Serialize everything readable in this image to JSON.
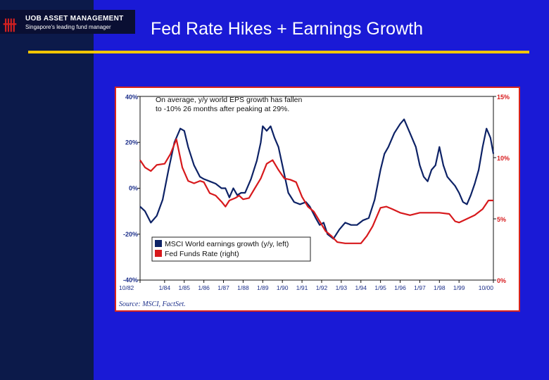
{
  "header": {
    "logo_mark": "卌",
    "logo_name": "UOB ASSET MANAGEMENT",
    "logo_tagline": "Singapore's leading fund manager",
    "title": "Fed Rate Hikes + Earnings Growth"
  },
  "colors": {
    "eps": "#0d2266",
    "fed": "#d7191c",
    "left_tick": "#1c2f8a",
    "right_tick": "#d7191c",
    "frame": "#d8241c",
    "accent_rule": "#f2c500"
  },
  "chart_data": {
    "type": "line",
    "annotation": "On average, y/y world EPS growth has fallen to -10% 26 months after peaking at 29%.",
    "annotation_lines": [
      "On average, y/y world EPS growth has fallen",
      "to -10% 26 months after peaking at 29%."
    ],
    "source": "Source: MSCI, FactSet.",
    "x_tick_labels": [
      "10/82",
      "1/84",
      "1/85",
      "1/86",
      "1/87",
      "1/88",
      "1/89",
      "1/90",
      "1/91",
      "1/92",
      "1/93",
      "1/94",
      "1/95",
      "1/96",
      "1/97",
      "1/98",
      "1/99",
      "10/00"
    ],
    "x_tick_values": [
      1982.75,
      1984.0,
      1985.0,
      1986.0,
      1987.0,
      1988.0,
      1989.0,
      1990.0,
      1991.0,
      1992.0,
      1993.0,
      1994.0,
      1995.0,
      1996.0,
      1997.0,
      1998.0,
      1999.0,
      2000.75
    ],
    "xlim": [
      1982.75,
      2000.75
    ],
    "y_left": {
      "ticks": [
        "40%",
        "20%",
        "0%",
        "-20%",
        "-40%"
      ],
      "tick_values": [
        40,
        20,
        0,
        -20,
        -40
      ],
      "range": [
        -40,
        40
      ]
    },
    "y_right": {
      "ticks": [
        "15%",
        "10%",
        "5%",
        "0%"
      ],
      "tick_values": [
        15,
        10,
        5,
        0
      ],
      "range": [
        0,
        15
      ]
    },
    "series": [
      {
        "name": "MSCI World earnings growth (y/y, left)",
        "axis": "left",
        "x": [
          1982.75,
          1983.0,
          1983.3,
          1983.6,
          1983.9,
          1984.2,
          1984.5,
          1984.8,
          1985.0,
          1985.2,
          1985.5,
          1985.8,
          1986.0,
          1986.3,
          1986.6,
          1986.9,
          1987.1,
          1987.3,
          1987.5,
          1987.7,
          1987.9,
          1988.1,
          1988.4,
          1988.7,
          1988.9,
          1989.0,
          1989.2,
          1989.4,
          1989.6,
          1989.8,
          1990.0,
          1990.3,
          1990.6,
          1990.9,
          1991.2,
          1991.4,
          1991.7,
          1991.9,
          1992.1,
          1992.3,
          1992.6,
          1992.9,
          1993.2,
          1993.5,
          1993.8,
          1994.1,
          1994.4,
          1994.7,
          1995.0,
          1995.2,
          1995.4,
          1995.7,
          1996.0,
          1996.2,
          1996.5,
          1996.8,
          1997.0,
          1997.2,
          1997.4,
          1997.6,
          1997.8,
          1998.0,
          1998.2,
          1998.4,
          1998.6,
          1998.8,
          1999.0,
          1999.2,
          1999.4,
          1999.6,
          1999.8,
          2000.0,
          2000.2,
          2000.4,
          2000.6,
          2000.75
        ],
        "values": [
          -8,
          -10,
          -15,
          -12,
          -5,
          8,
          20,
          26,
          25,
          18,
          10,
          5,
          4,
          3,
          2,
          0,
          0,
          -4,
          0,
          -3,
          -2,
          -2,
          4,
          12,
          20,
          27,
          25,
          27,
          22,
          18,
          10,
          -2,
          -6,
          -7,
          -6,
          -8,
          -13,
          -16,
          -15,
          -20,
          -22,
          -18,
          -15,
          -16,
          -16,
          -14,
          -13,
          -5,
          8,
          15,
          18,
          24,
          28,
          30,
          24,
          18,
          10,
          5,
          3,
          8,
          10,
          18,
          10,
          5,
          3,
          1,
          -2,
          -6,
          -7,
          -3,
          2,
          8,
          18,
          26,
          22,
          15
        ]
      },
      {
        "name": "Fed Funds Rate (right)",
        "axis": "right",
        "x": [
          1982.75,
          1983.0,
          1983.3,
          1983.6,
          1984.0,
          1984.3,
          1984.6,
          1984.9,
          1985.2,
          1985.5,
          1985.8,
          1986.0,
          1986.3,
          1986.6,
          1986.9,
          1987.1,
          1987.3,
          1987.6,
          1987.8,
          1988.0,
          1988.3,
          1988.6,
          1988.9,
          1989.2,
          1989.5,
          1989.8,
          1990.1,
          1990.4,
          1990.7,
          1991.0,
          1991.3,
          1991.6,
          1991.9,
          1992.2,
          1992.5,
          1992.8,
          1993.2,
          1993.6,
          1994.0,
          1994.3,
          1994.6,
          1995.0,
          1995.3,
          1995.6,
          1996.0,
          1996.5,
          1997.0,
          1997.5,
          1998.0,
          1998.5,
          1998.8,
          1999.0,
          1999.4,
          1999.8,
          2000.2,
          2000.5,
          2000.75
        ],
        "values": [
          9.8,
          9.2,
          8.9,
          9.4,
          9.5,
          10.3,
          11.5,
          9.2,
          8.1,
          7.9,
          8.1,
          8.0,
          7.1,
          6.9,
          6.4,
          6.0,
          6.5,
          6.7,
          6.9,
          6.6,
          6.7,
          7.5,
          8.3,
          9.5,
          9.8,
          9.0,
          8.3,
          8.2,
          8.0,
          6.8,
          6.0,
          5.6,
          4.8,
          4.0,
          3.6,
          3.1,
          3.0,
          3.0,
          3.0,
          3.6,
          4.4,
          5.9,
          6.0,
          5.8,
          5.5,
          5.3,
          5.5,
          5.5,
          5.5,
          5.4,
          4.8,
          4.7,
          5.0,
          5.3,
          5.8,
          6.5,
          6.5
        ]
      }
    ],
    "legend_position": "bottom-left"
  }
}
